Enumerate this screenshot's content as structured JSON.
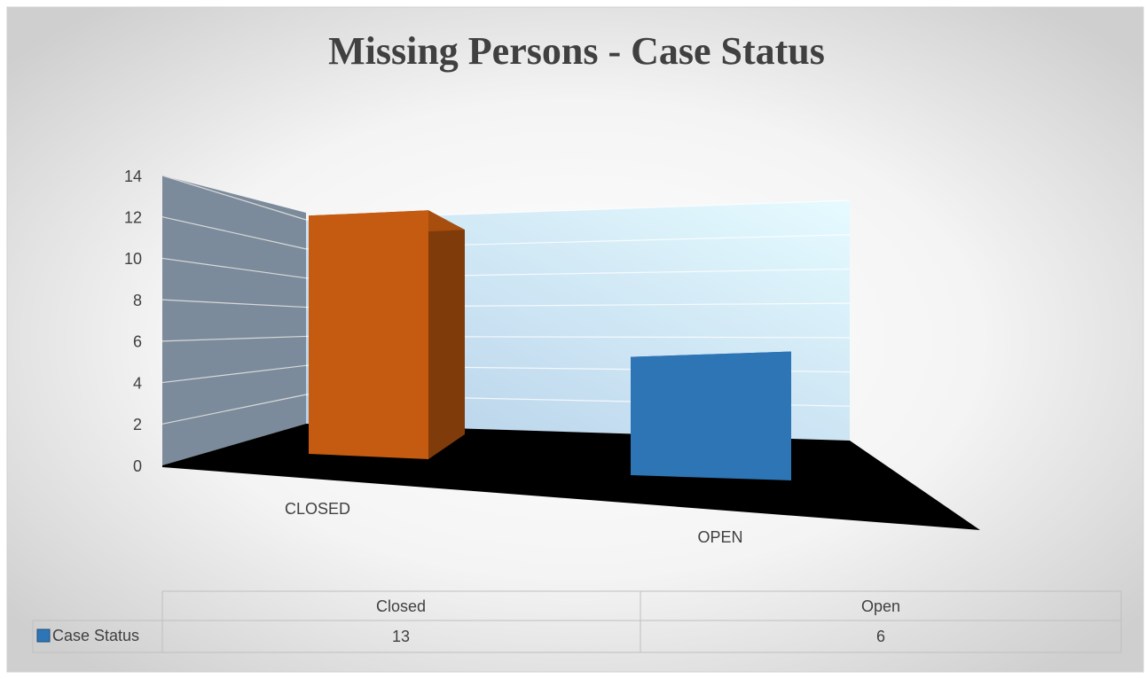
{
  "chart_data": {
    "type": "bar3d",
    "title": "Missing Persons - Case Status",
    "categories": [
      "CLOSED",
      "OPEN"
    ],
    "series": [
      {
        "name": "Case Status",
        "color": "#2e75b6",
        "point_colors": [
          "#c55a11",
          "#2e75b6"
        ],
        "values": [
          13,
          6
        ]
      }
    ],
    "data_table": {
      "columns": [
        "Closed",
        "Open"
      ]
    },
    "ylim": [
      0,
      14
    ],
    "yticks": [
      0,
      2,
      4,
      6,
      8,
      10,
      12,
      14
    ],
    "grid": true
  }
}
